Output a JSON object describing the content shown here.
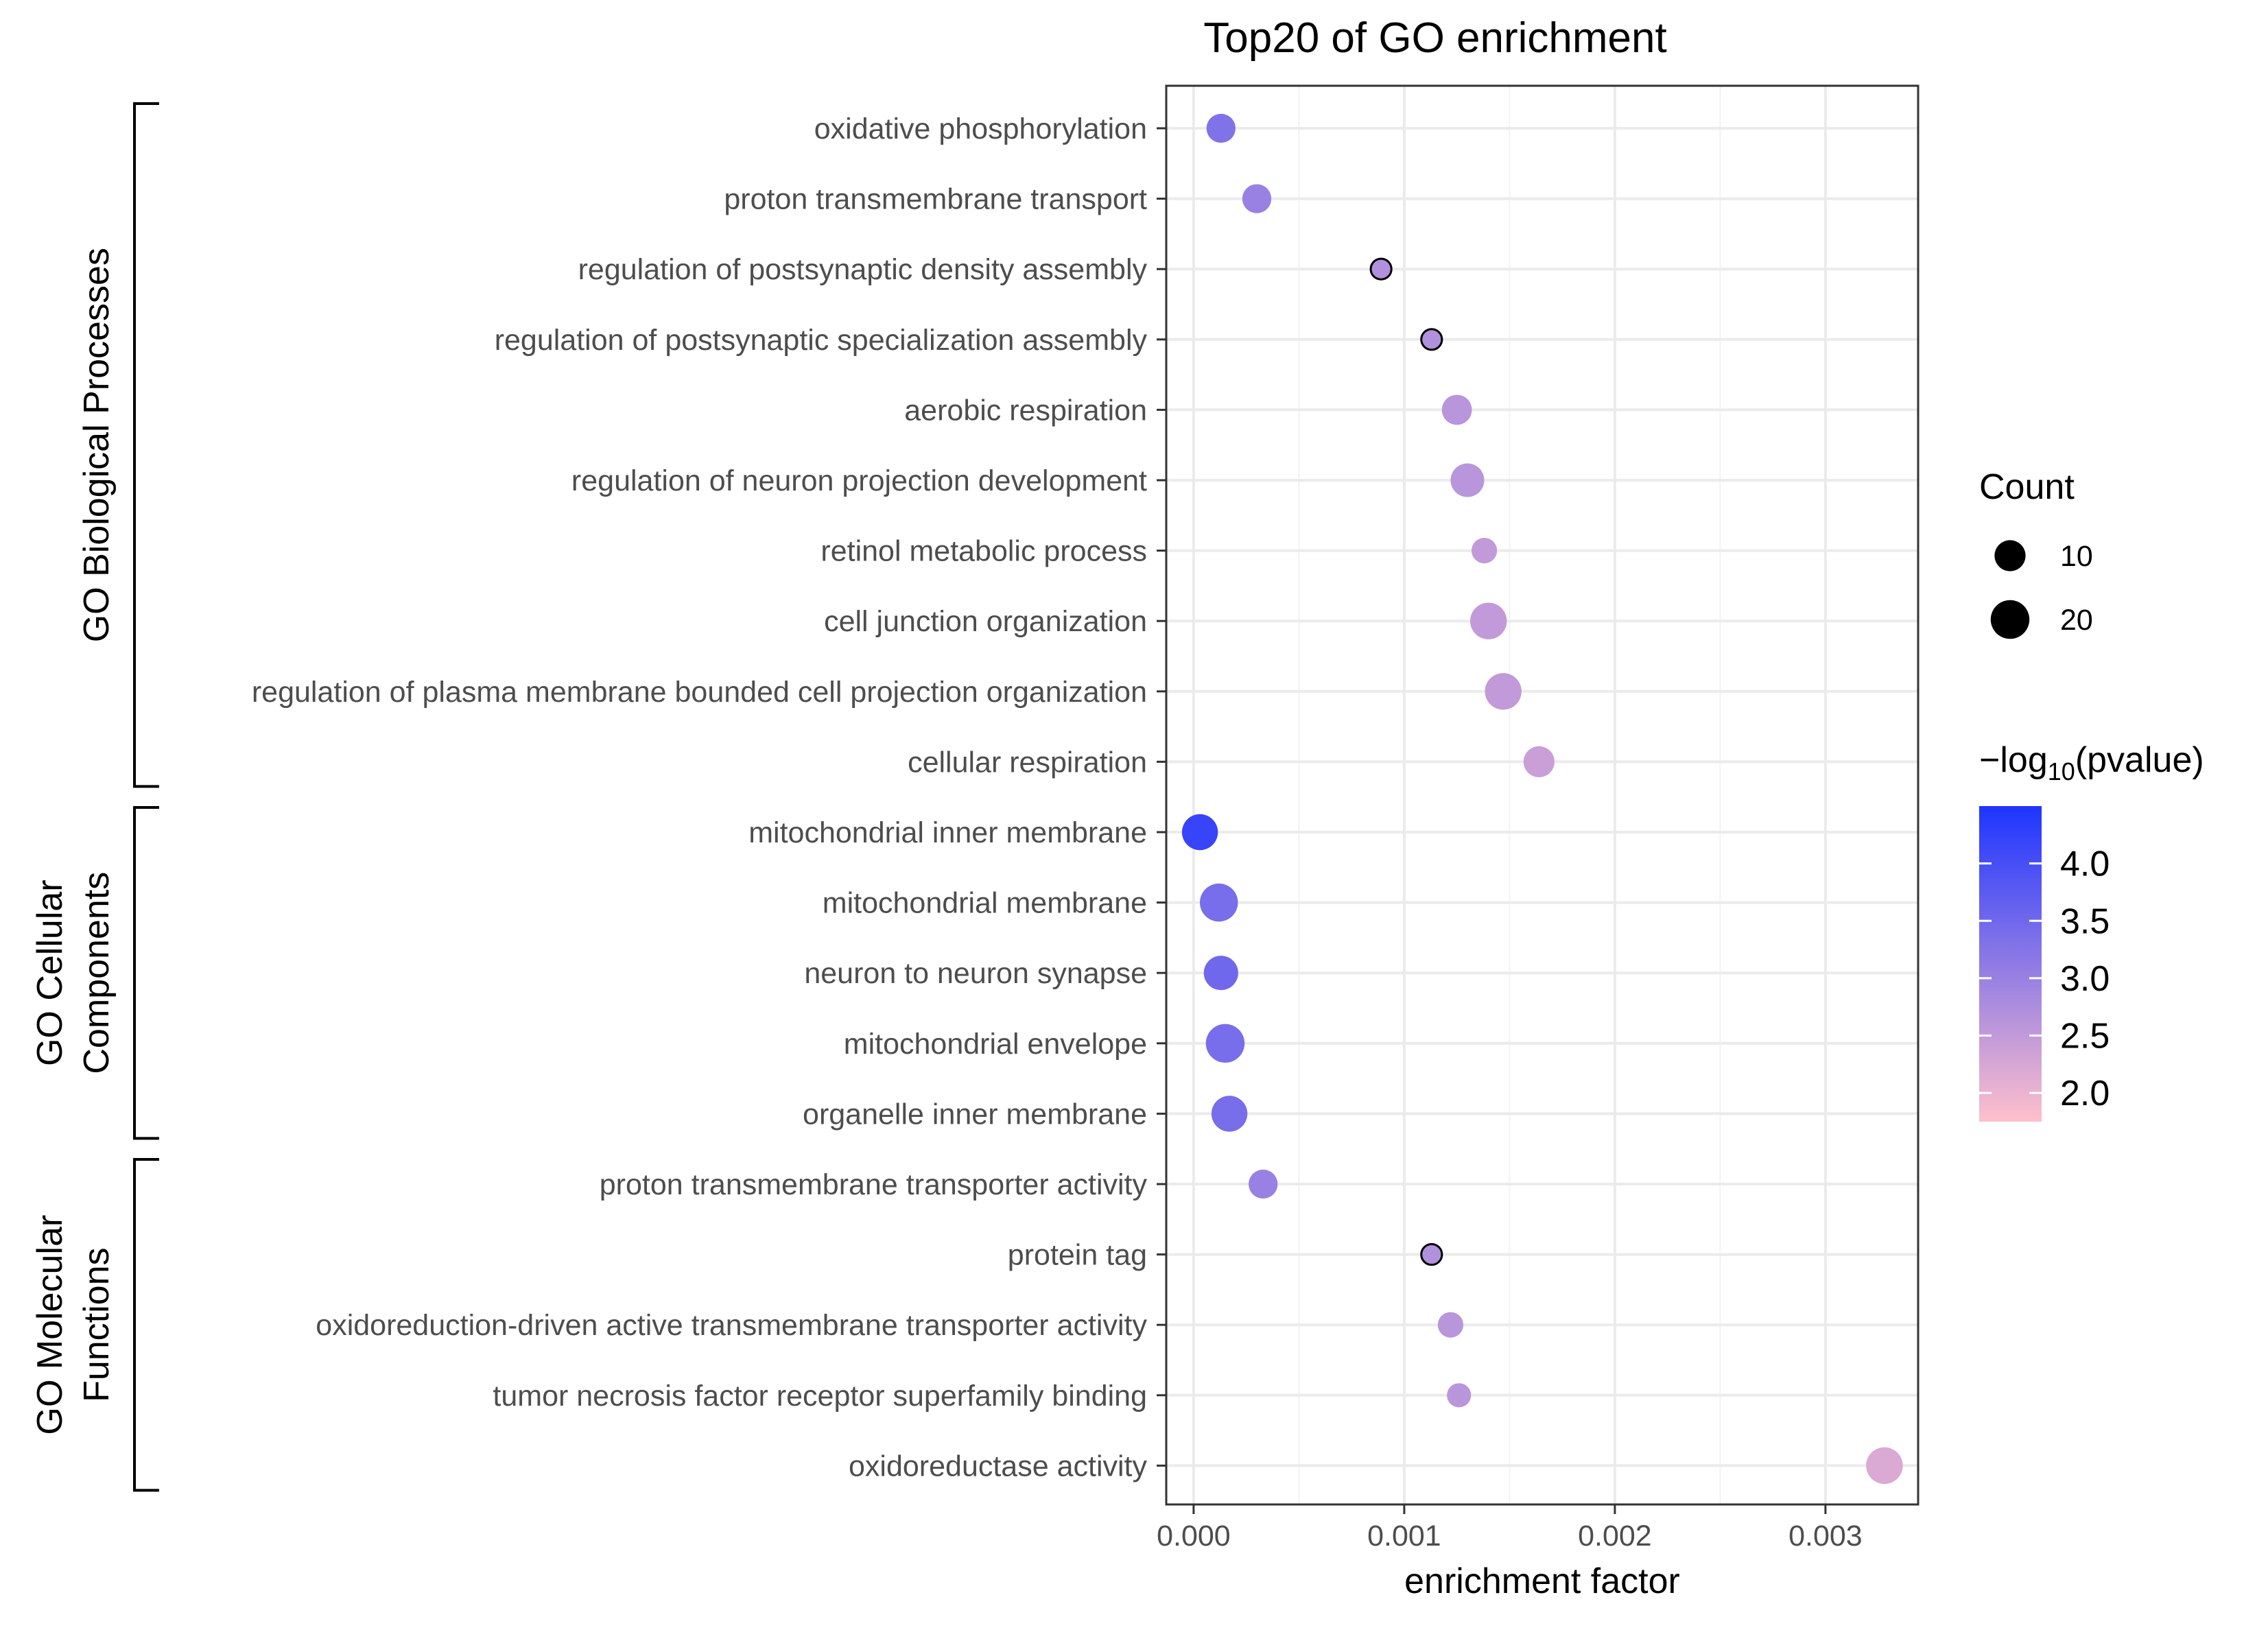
{
  "chart_data": {
    "type": "scatter",
    "title": "Top20 of GO enrichment",
    "xlabel": "enrichment factor",
    "ylabel": "",
    "xlim": [
      -0.00013,
      0.00344
    ],
    "x_ticks": [
      0.0,
      0.001,
      0.002,
      0.003
    ],
    "x_tick_labels": [
      "0.000",
      "0.001",
      "0.002",
      "0.003"
    ],
    "grid": true,
    "groups": [
      {
        "name": "GO Biological Processes",
        "label_lines": [
          "GO Biological Processes"
        ],
        "rows": [
          0,
          9
        ]
      },
      {
        "name": "GO Cellular Components",
        "label_lines": [
          "GO Cellular",
          "Components"
        ],
        "rows": [
          10,
          14
        ]
      },
      {
        "name": "GO Molecular Functions",
        "label_lines": [
          "GO Molecular",
          "Functions"
        ],
        "rows": [
          15,
          19
        ]
      }
    ],
    "terms": [
      {
        "term": "oxidative phosphorylation",
        "x": 0.00013,
        "count": 8,
        "neglog10p": 3.3
      },
      {
        "term": "proton transmembrane transport",
        "x": 0.0003,
        "count": 8,
        "neglog10p": 3.0
      },
      {
        "term": "regulation of postsynaptic density assembly",
        "x": 0.00089,
        "count": 2,
        "neglog10p": 2.7
      },
      {
        "term": "regulation of postsynaptic specialization assembly",
        "x": 0.00113,
        "count": 2,
        "neglog10p": 2.7
      },
      {
        "term": "aerobic respiration",
        "x": 0.00125,
        "count": 9,
        "neglog10p": 2.6
      },
      {
        "term": "regulation of neuron projection development",
        "x": 0.0013,
        "count": 13,
        "neglog10p": 2.6
      },
      {
        "term": "retinol metabolic process",
        "x": 0.00138,
        "count": 5,
        "neglog10p": 2.5
      },
      {
        "term": "cell junction organization",
        "x": 0.0014,
        "count": 17,
        "neglog10p": 2.5
      },
      {
        "term": "regulation of plasma membrane bounded cell projection organization",
        "x": 0.00147,
        "count": 17,
        "neglog10p": 2.5
      },
      {
        "term": "cellular respiration",
        "x": 0.00164,
        "count": 10,
        "neglog10p": 2.4
      },
      {
        "term": "mitochondrial inner membrane",
        "x": 3e-05,
        "count": 16,
        "neglog10p": 4.2
      },
      {
        "term": "mitochondrial membrane",
        "x": 0.00012,
        "count": 19,
        "neglog10p": 3.4
      },
      {
        "term": "neuron to neuron synapse",
        "x": 0.00013,
        "count": 14,
        "neglog10p": 3.5
      },
      {
        "term": "mitochondrial envelope",
        "x": 0.00015,
        "count": 20,
        "neglog10p": 3.4
      },
      {
        "term": "organelle inner membrane",
        "x": 0.00017,
        "count": 16,
        "neglog10p": 3.4
      },
      {
        "term": "proton transmembrane transporter activity",
        "x": 0.00033,
        "count": 8,
        "neglog10p": 3.0
      },
      {
        "term": "protein tag",
        "x": 0.00113,
        "count": 2,
        "neglog10p": 2.7
      },
      {
        "term": "oxidoreduction-driven active transmembrane transporter activity",
        "x": 0.00122,
        "count": 5,
        "neglog10p": 2.6
      },
      {
        "term": "tumor necrosis factor receptor superfamily binding",
        "x": 0.00126,
        "count": 4,
        "neglog10p": 2.6
      },
      {
        "term": "oxidoreductase activity",
        "x": 0.00328,
        "count": 17,
        "neglog10p": 2.2
      }
    ],
    "size_legend": {
      "title": "Count",
      "values": [
        10,
        20
      ],
      "labels": [
        "10",
        "20"
      ]
    },
    "color_legend": {
      "title_prefix": "−log",
      "title_sub": "10",
      "title_suffix": "(pvalue)",
      "range": [
        1.75,
        4.5
      ],
      "ticks": [
        4.0,
        3.5,
        3.0,
        2.5,
        2.0
      ],
      "tick_labels": [
        "4.0",
        "3.5",
        "3.0",
        "2.5",
        "2.0"
      ],
      "low_color": "#ffc0cb",
      "high_color": "#1e35ff"
    },
    "marker_outline_color": "#000000"
  }
}
